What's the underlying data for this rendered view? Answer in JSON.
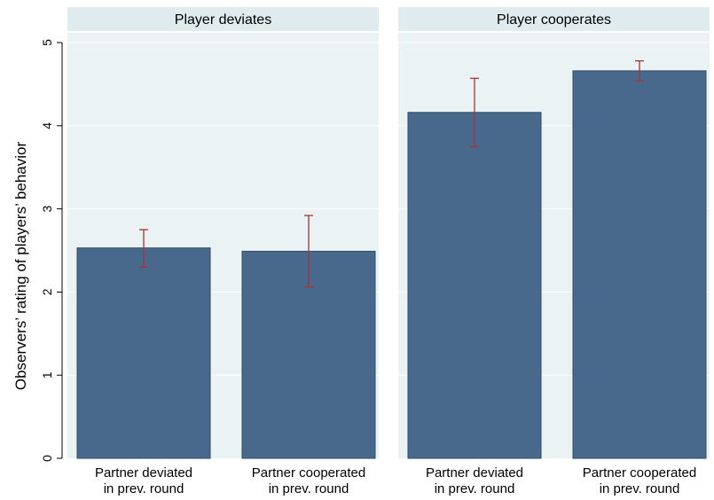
{
  "chart_data": {
    "type": "bar",
    "ylabel": "Observers’ rating of players’ behavior",
    "ylim": [
      0,
      5
    ],
    "yticks": [
      0,
      1,
      2,
      3,
      4,
      5
    ],
    "grid": true,
    "colors": {
      "bar": "#48698c",
      "bar_edge": "#2f4a66",
      "error_bar": "#a3343a",
      "panel_bg": "#eaf2f3",
      "strip_bg": "#e0ebee",
      "grid": "#ffffff"
    },
    "panels": [
      {
        "title": "Player deviates",
        "bars": [
          {
            "label_lines": [
              "Partner deviated",
              "in prev. round"
            ],
            "value": 2.53,
            "ci": [
              2.3,
              2.75
            ]
          },
          {
            "label_lines": [
              "Partner cooperated",
              "in prev. round"
            ],
            "value": 2.49,
            "ci": [
              2.06,
              2.92
            ]
          }
        ]
      },
      {
        "title": "Player cooperates",
        "bars": [
          {
            "label_lines": [
              "Partner deviated",
              "in prev. round"
            ],
            "value": 4.16,
            "ci": [
              3.75,
              4.57
            ]
          },
          {
            "label_lines": [
              "Partner cooperated",
              "in prev. round"
            ],
            "value": 4.66,
            "ci": [
              4.54,
              4.78
            ]
          }
        ]
      }
    ]
  }
}
